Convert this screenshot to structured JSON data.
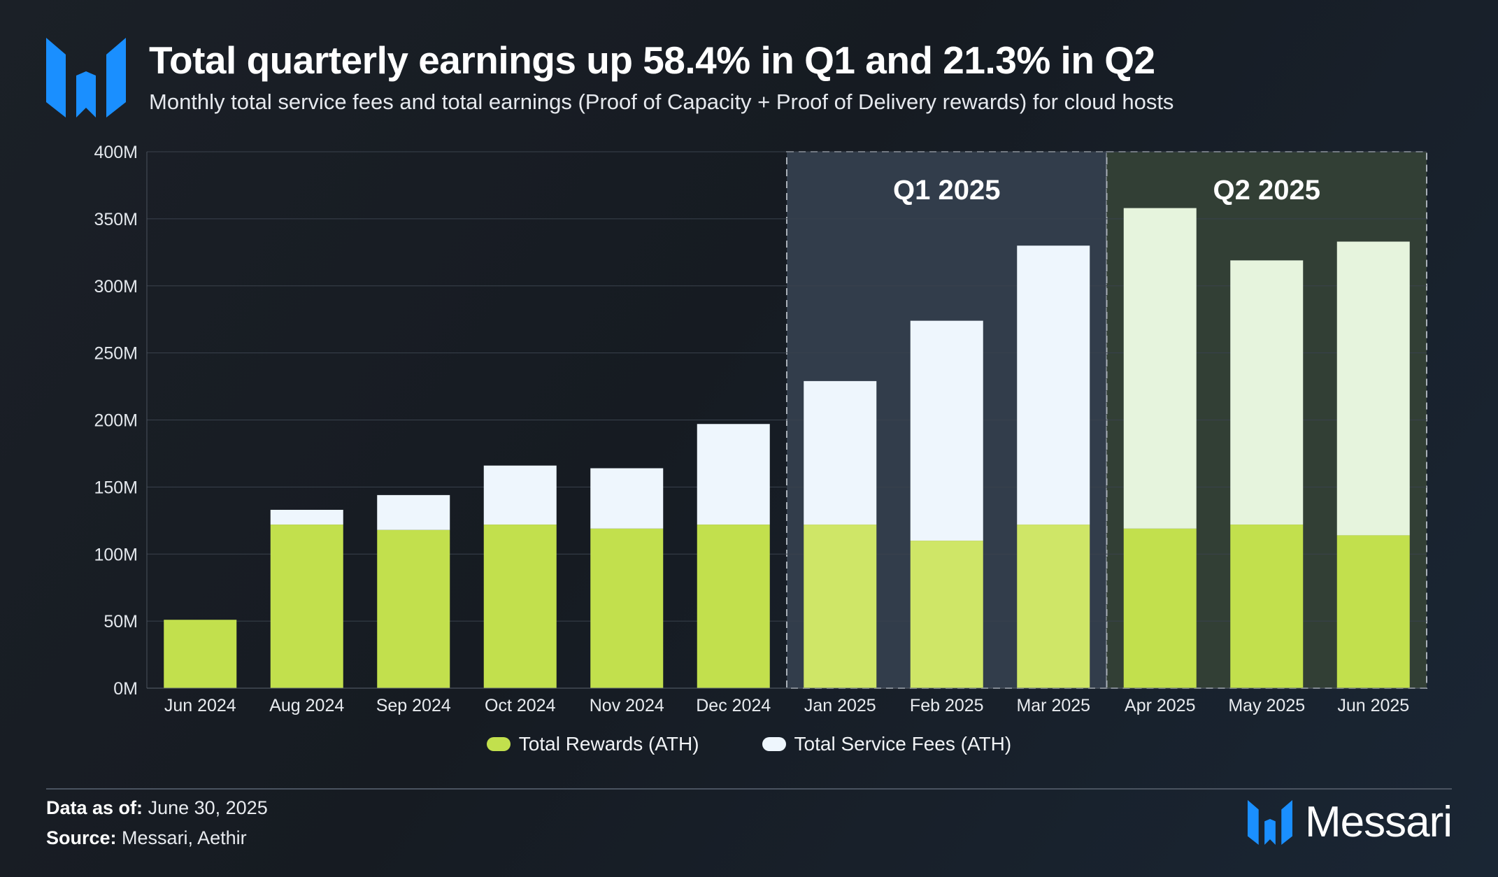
{
  "header": {
    "title": "Total quarterly earnings up 58.4% in Q1 and 21.3% in Q2",
    "subtitle": "Monthly total service fees and total earnings (Proof of Capacity + Proof of Delivery rewards) for cloud hosts"
  },
  "chart_data": {
    "type": "bar",
    "stacked": true,
    "categories": [
      "Jun 2024",
      "Aug 2024",
      "Sep 2024",
      "Oct 2024",
      "Nov 2024",
      "Dec 2024",
      "Jan 2025",
      "Feb 2025",
      "Mar 2025",
      "Apr 2025",
      "May 2025",
      "Jun 2025"
    ],
    "series": [
      {
        "name": "Total Rewards (ATH)",
        "values": [
          51,
          122,
          118,
          122,
          119,
          122,
          122,
          110,
          122,
          119,
          122,
          114
        ],
        "color": "#c2e04d"
      },
      {
        "name": "Total Service Fees (ATH)",
        "values": [
          0,
          11,
          26,
          44,
          45,
          75,
          107,
          164,
          208,
          239,
          197,
          219
        ],
        "color": "#eef6fd"
      }
    ],
    "ylim": [
      0,
      400
    ],
    "yticks": [
      "0M",
      "50M",
      "100M",
      "150M",
      "200M",
      "250M",
      "300M",
      "350M",
      "400M"
    ],
    "grid": true,
    "legend": "bottom-center",
    "highlights": [
      {
        "label": "Q1 2025",
        "start": "Jan 2025",
        "end": "Mar 2025",
        "color": "#323d4b"
      },
      {
        "label": "Q2 2025",
        "start": "Apr 2025",
        "end": "Jun 2025",
        "color": "#323f35"
      }
    ]
  },
  "legend": {
    "rewards_label": "Total Rewards (ATH)",
    "fees_label": "Total Service Fees (ATH)",
    "rewards_color": "#c2e04d",
    "fees_color": "#eef6fd"
  },
  "footer": {
    "date_label": "Data as of:",
    "date_value": "June 30, 2025",
    "source_label": "Source:",
    "source_value": "Messari, Aethir",
    "brand": "Messari"
  }
}
